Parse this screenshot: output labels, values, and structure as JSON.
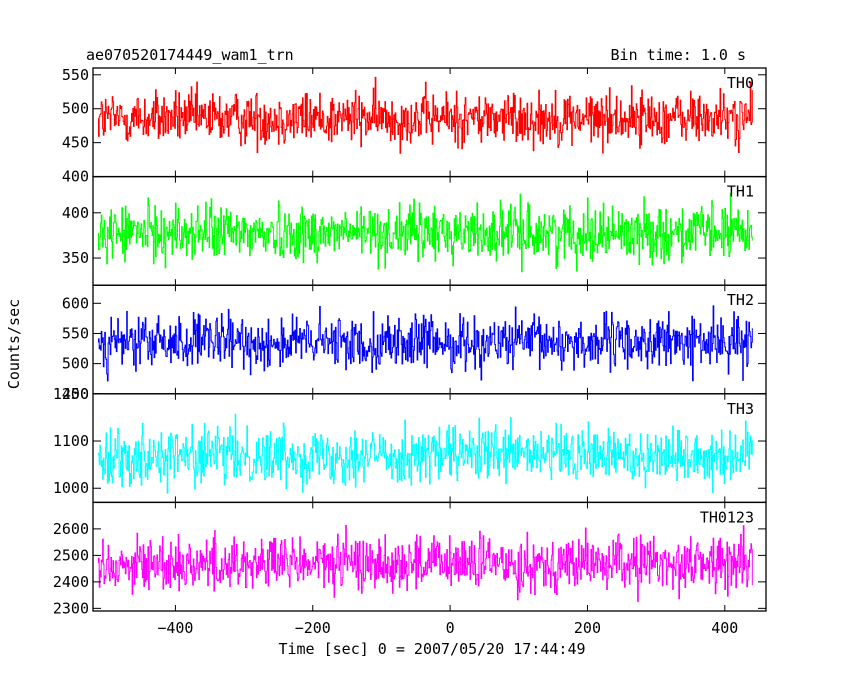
{
  "header": {
    "title": "ae070520174449_wam1_trn",
    "bin_time": "Bin time: 1.0 s"
  },
  "xlabel": "Time [sec] 0 = 2007/05/20 17:44:49",
  "ylabel": "Counts/sec",
  "chart_data": {
    "type": "line",
    "x_range": [
      -512,
      440
    ],
    "xlim": [
      -520,
      460
    ],
    "x_ticks": [
      -400,
      -200,
      0,
      200,
      400
    ],
    "x_tick_labels": [
      "−400",
      "−200",
      "0",
      "200",
      "400"
    ],
    "bin_time_s": 1.0,
    "grid": false,
    "panels": [
      {
        "name": "TH0",
        "color": "#ff0000",
        "ylim": [
          400,
          560
        ],
        "yticks": [
          400,
          450,
          500,
          550
        ],
        "mean": 486,
        "spread": 36
      },
      {
        "name": "TH1",
        "color": "#00ff00",
        "ylim": [
          320,
          440
        ],
        "yticks": [
          350,
          400
        ],
        "mean": 378,
        "spread": 28
      },
      {
        "name": "TH2",
        "color": "#0000ff",
        "ylim": [
          450,
          630
        ],
        "yticks": [
          450,
          500,
          550,
          600
        ],
        "mean": 535,
        "spread": 40
      },
      {
        "name": "TH3",
        "color": "#00ffff",
        "ylim": [
          970,
          1200
        ],
        "yticks": [
          1000,
          1100,
          1200
        ],
        "mean": 1070,
        "spread": 55
      },
      {
        "name": "TH0123",
        "color": "#ff00ff",
        "ylim": [
          2290,
          2700
        ],
        "yticks": [
          2300,
          2400,
          2500,
          2600
        ],
        "mean": 2470,
        "spread": 95
      }
    ]
  }
}
